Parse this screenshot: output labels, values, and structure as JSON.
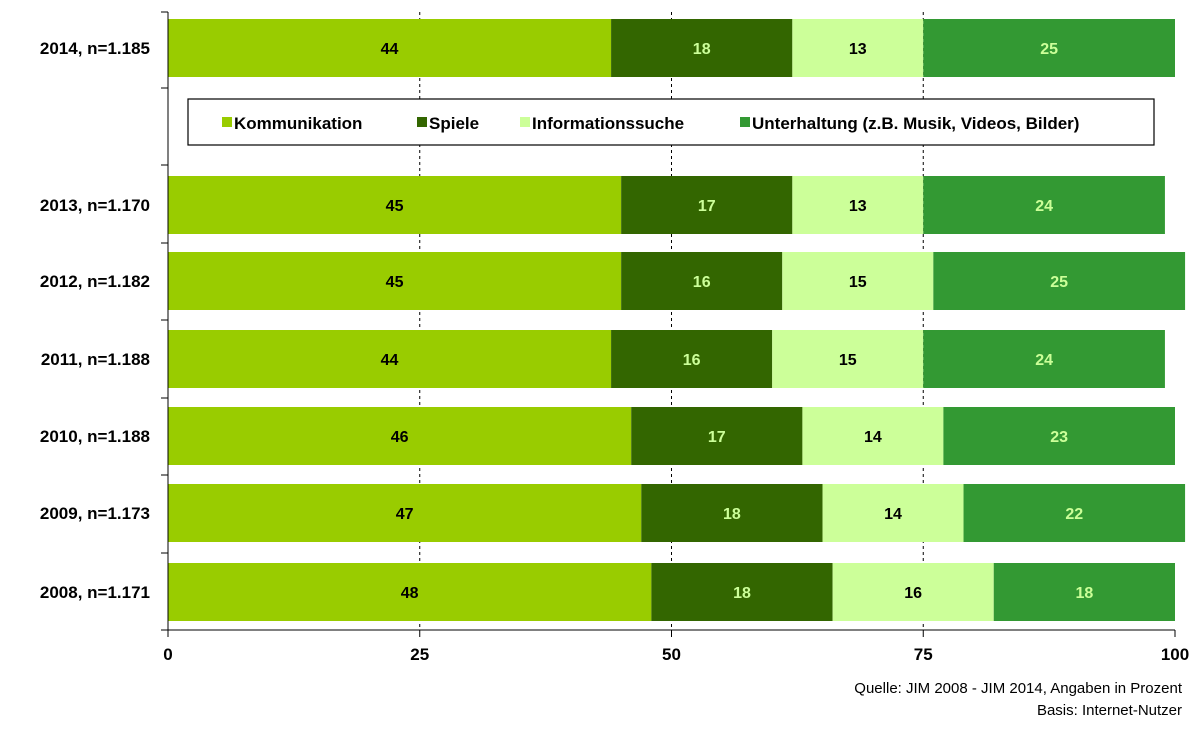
{
  "chart_data": {
    "type": "bar",
    "orientation": "horizontal",
    "stacked": true,
    "categories": [
      "2014, n=1.185",
      "2013, n=1.170",
      "2012, n=1.182",
      "2011, n=1.188",
      "2010, n=1.188",
      "2009, n=1.173",
      "2008, n=1.171"
    ],
    "series": [
      {
        "name": "Kommunikation",
        "color": "#99cc00",
        "label_color": "#000000",
        "values": [
          44,
          45,
          45,
          44,
          46,
          47,
          48
        ]
      },
      {
        "name": "Spiele",
        "color": "#336600",
        "label_color": "#ccff99",
        "values": [
          18,
          17,
          16,
          16,
          17,
          18,
          18
        ]
      },
      {
        "name": "Informationssuche",
        "color": "#ccff99",
        "label_color": "#000000",
        "values": [
          13,
          13,
          15,
          15,
          14,
          14,
          16
        ]
      },
      {
        "name": "Unterhaltung (z.B. Musik, Videos, Bilder)",
        "color": "#339933",
        "label_color": "#ccff99",
        "values": [
          25,
          24,
          25,
          24,
          23,
          22,
          18
        ]
      }
    ],
    "xlim": [
      0,
      100
    ],
    "xticks": [
      "0",
      "25",
      "50",
      "75",
      "100"
    ],
    "grid": "vertical dashed",
    "legend_position": "top, below first bar"
  },
  "footer": {
    "source": "Quelle: JIM 2008 - JIM 2014, Angaben in Prozent",
    "basis": "Basis: Internet-Nutzer"
  }
}
